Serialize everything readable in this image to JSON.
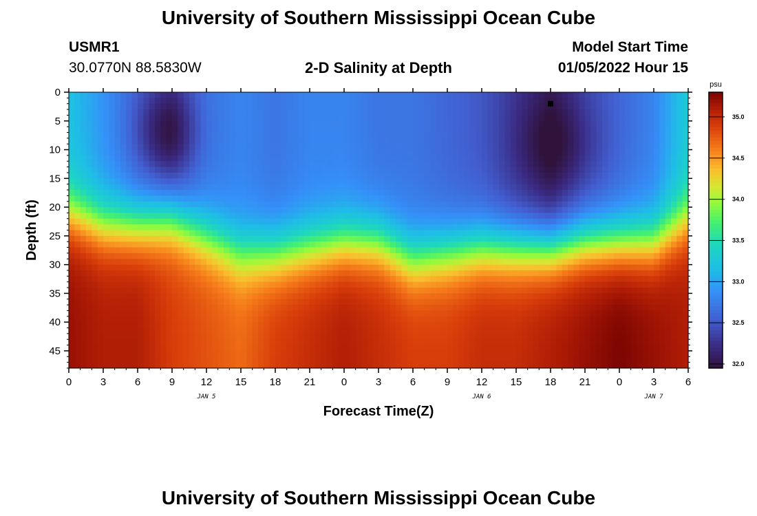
{
  "header": {
    "title": "University of Southern Mississippi Ocean Cube",
    "station_id": "USMR1",
    "station_coords": "30.0770N  88.5830W",
    "plot_title": "2-D Salinity at Depth",
    "model_start_label": "Model Start Time",
    "model_start_value": "01/05/2022 Hour 15"
  },
  "footer": {
    "title": "University of Southern Mississippi Ocean Cube"
  },
  "chart_data": {
    "type": "heatmap",
    "title": "2-D Salinity at Depth",
    "xlabel": "Forecast Time(Z)",
    "ylabel": "Depth (ft)",
    "x_ticks": [
      "0",
      "3",
      "6",
      "9",
      "12",
      "15",
      "18",
      "21",
      "0",
      "3",
      "6",
      "9",
      "12",
      "15",
      "18",
      "21",
      "0",
      "3",
      "6"
    ],
    "x_tick_hours": [
      0,
      3,
      6,
      9,
      12,
      15,
      18,
      21,
      24,
      27,
      30,
      33,
      36,
      39,
      42,
      45,
      48,
      51,
      54
    ],
    "x_range_hours": [
      0,
      54
    ],
    "day_labels": [
      {
        "text": "JAN 5",
        "hour": 12
      },
      {
        "text": "JAN 6",
        "hour": 36
      },
      {
        "text": "JAN 7",
        "hour": 51
      }
    ],
    "y_ticks": [
      0,
      5,
      10,
      15,
      20,
      25,
      30,
      35,
      40,
      45
    ],
    "y_range": [
      0,
      48
    ],
    "marker": {
      "hour": 42,
      "depth": 2
    },
    "colorbar": {
      "unit": "psu",
      "min": 31.95,
      "max": 35.3,
      "ticks": [
        "35.0",
        "34.5",
        "34.0",
        "33.5",
        "33.0",
        "32.5",
        "32.0"
      ],
      "tick_values": [
        35.0,
        34.5,
        34.0,
        33.5,
        33.0,
        32.5,
        32.0
      ]
    },
    "columns_hours": [
      0,
      3,
      6,
      9,
      12,
      15,
      18,
      21,
      24,
      27,
      30,
      33,
      36,
      39,
      42,
      45,
      48,
      51,
      54
    ],
    "halocline_depth_ft": [
      21,
      23,
      23,
      22,
      25,
      28,
      28,
      27,
      26,
      26,
      29,
      28,
      27,
      27,
      27,
      26,
      26,
      26,
      22
    ],
    "surface_salinity": [
      33.2,
      32.9,
      32.6,
      32.4,
      32.7,
      32.8,
      32.7,
      32.8,
      32.8,
      32.7,
      32.7,
      32.6,
      32.5,
      32.3,
      32.1,
      32.4,
      32.6,
      32.8,
      33.3
    ],
    "bottom_salinity": [
      35.2,
      35.1,
      35.1,
      34.9,
      34.8,
      34.7,
      34.9,
      35.0,
      35.1,
      35.0,
      34.9,
      34.9,
      35.0,
      35.0,
      35.1,
      35.2,
      35.3,
      35.2,
      35.1
    ]
  }
}
